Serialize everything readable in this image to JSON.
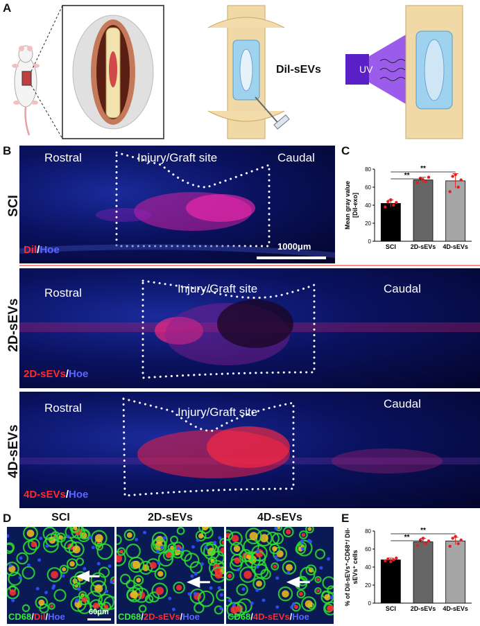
{
  "panels": {
    "a": "A",
    "b": "B",
    "c": "C",
    "d": "D",
    "e": "E"
  },
  "panel_a": {
    "dil_label": "Dil-sEVs",
    "uv_label": "UV"
  },
  "panel_b": {
    "rows": [
      {
        "row_label": "SCI",
        "rostral": "Rostral",
        "site": "Injury/Graft site",
        "caudal": "Caudal",
        "stain": {
          "a": "Dil",
          "sep": "/",
          "b": "Hoe"
        },
        "scale_bar": "1000μm"
      },
      {
        "row_label": "2D-sEVs",
        "rostral": "Rostral",
        "site": "Injury/Graft site",
        "caudal": "Caudal",
        "stain": {
          "a": "2D-sEVs",
          "sep": "/",
          "b": "Hoe"
        }
      },
      {
        "row_label": "4D-sEVs",
        "rostral": "Rostral",
        "site": "Injury/Graft site",
        "caudal": "Caudal",
        "stain": {
          "a": "4D-sEVs",
          "sep": "/",
          "b": "Hoe"
        }
      }
    ]
  },
  "panel_d": {
    "titles": [
      "SCI",
      "2D-sEVs",
      "4D-sEVs"
    ],
    "stains": [
      {
        "a": "CD68",
        "s1": "/",
        "b": "Dil",
        "s2": "/",
        "c": "Hoe"
      },
      {
        "a": "CD68",
        "s1": "/",
        "b": "2D-sEVs",
        "s2": "/",
        "c": "Hoe"
      },
      {
        "a": "CD68",
        "s1": "/",
        "b": "4D-sEVs",
        "s2": "/",
        "c": "Hoe"
      }
    ],
    "scale_bar": "60μm"
  },
  "chart_data": [
    {
      "type": "bar",
      "ylabel_line1": "Mean gray value",
      "ylabel_line2": "[Dil-exo]",
      "categories": [
        "SCI",
        "2D-sEVs",
        "4D-sEVs"
      ],
      "values": [
        42,
        68,
        67
      ],
      "errors": [
        4,
        3,
        8
      ],
      "points": [
        [
          38,
          44,
          46,
          40,
          43
        ],
        [
          65,
          70,
          68,
          66,
          71
        ],
        [
          55,
          72,
          74,
          60,
          68
        ]
      ],
      "ylim": [
        0,
        80
      ],
      "yticks": [
        "0",
        "20",
        "40",
        "60",
        "80"
      ],
      "significance": [
        {
          "from": 0,
          "to": 1,
          "label": "**"
        },
        {
          "from": 0,
          "to": 2,
          "label": "**"
        }
      ],
      "colors": [
        "#000000",
        "#666666",
        "#a6a6a6"
      ],
      "point_color": "#e02020"
    },
    {
      "type": "bar",
      "ylabel_line1": "% of Dil-sEVs⁺-CD68⁺/ Dil-",
      "ylabel_line2": "sEVs⁺ cells",
      "categories": [
        "SCI",
        "2D-sEVs",
        "4D-sEVs"
      ],
      "values": [
        48,
        68,
        69
      ],
      "errors": [
        2,
        4,
        4
      ],
      "points": [
        [
          47,
          49,
          46,
          48,
          50
        ],
        [
          64,
          70,
          72,
          66,
          69
        ],
        [
          63,
          72,
          74,
          66,
          70
        ]
      ],
      "ylim": [
        0,
        80
      ],
      "yticks": [
        "0",
        "20",
        "40",
        "60",
        "80"
      ],
      "significance": [
        {
          "from": 0,
          "to": 1,
          "label": "**"
        },
        {
          "from": 0,
          "to": 2,
          "label": "**"
        }
      ],
      "colors": [
        "#000000",
        "#666666",
        "#a6a6a6"
      ],
      "point_color": "#e02020"
    }
  ]
}
